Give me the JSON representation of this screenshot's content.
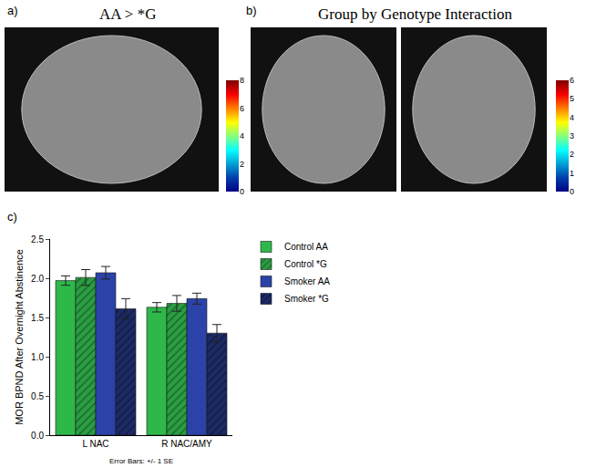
{
  "chart_data": [
    {
      "type": "image",
      "panel": "a)",
      "title": "AA > *G",
      "colorbar": {
        "range": [
          0,
          8
        ],
        "ticks": [
          0,
          2,
          4,
          6,
          8
        ]
      }
    },
    {
      "type": "image",
      "panel": "b)",
      "title": "Group by Genotype Interaction",
      "colorbar": {
        "range": [
          0,
          6
        ],
        "ticks": [
          0,
          1,
          2,
          3,
          4,
          5,
          6
        ]
      }
    },
    {
      "type": "bar",
      "panel": "c)",
      "y_label": "MOR BPND After Overnight Abstinence",
      "annotation": "Error Bars: +/- 1 SE",
      "categories": [
        "L NAC",
        "R NAC/AMY"
      ],
      "ylim": [
        0,
        2.5
      ],
      "yticks": [
        {
          "value": 0,
          "label": "0.0"
        },
        0.5,
        {
          "value": 1,
          "label": "1.0"
        },
        1.5,
        {
          "value": 2,
          "label": "2.0"
        },
        2.5
      ],
      "grid": false,
      "legend": "upper right",
      "series": [
        {
          "name": "Control AA",
          "color": "#2fb84a",
          "values": [
            1.97,
            1.63
          ],
          "error": [
            0.06,
            0.06
          ]
        },
        {
          "name": "Control *G",
          "color": "#2a9e42",
          "marker": "hatched",
          "values": [
            2.01,
            1.68
          ],
          "error": [
            0.1,
            0.1
          ]
        },
        {
          "name": "Smoker AA",
          "color": "#2b43a8",
          "values": [
            2.07,
            1.74
          ],
          "error": [
            0.08,
            0.07
          ]
        },
        {
          "name": "Smoker *G",
          "color": "#1c2a66",
          "marker": "hatched",
          "values": [
            1.61,
            1.3
          ],
          "error": [
            0.13,
            0.11
          ]
        }
      ]
    }
  ]
}
